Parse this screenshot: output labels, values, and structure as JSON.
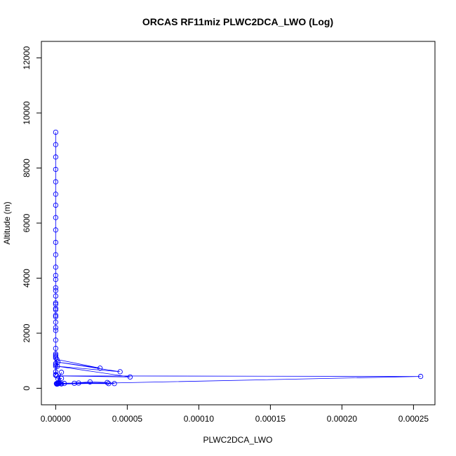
{
  "chart_data": {
    "type": "line",
    "title": "ORCAS RF11miz PLWC2DCA_LWO (Log)",
    "xlabel": "PLWC2DCA_LWO",
    "ylabel": "Altitude (m)",
    "xlim": [
      -1e-05,
      0.000265
    ],
    "ylim": [
      -600,
      12600
    ],
    "x_ticks": [
      0,
      5e-05,
      0.0001,
      0.00015,
      0.0002,
      0.00025
    ],
    "x_tick_labels": [
      "0.00000",
      "0.00005",
      "0.00010",
      "0.00015",
      "0.00020",
      "0.00025"
    ],
    "y_ticks": [
      0,
      2000,
      4000,
      6000,
      8000,
      10000,
      12000
    ],
    "y_tick_labels": [
      "0",
      "2000",
      "4000",
      "6000",
      "8000",
      "10000",
      "12000"
    ],
    "grid": false,
    "color": "#0000ff",
    "series": [
      {
        "x": [
          0,
          0,
          0,
          0,
          0,
          0,
          0,
          0,
          0,
          0,
          0,
          0,
          0,
          0,
          0,
          0,
          0,
          0,
          0,
          0,
          0,
          0,
          0,
          0,
          0,
          0,
          0,
          0,
          0,
          0,
          0,
          0,
          0,
          0,
          0,
          0,
          0,
          0,
          8e-07,
          3.1e-05,
          1.5e-06,
          4.5e-05,
          1.2e-06,
          5.2e-05,
          8e-07,
          0.000255,
          8e-07,
          2.4e-05,
          3.6e-05,
          1.4e-06,
          3.7e-05,
          1.6e-05,
          1.3e-05,
          4.1e-05,
          6e-06,
          4e-06,
          3.5e-06,
          2e-06,
          2.5e-06,
          1.5e-06,
          4e-06,
          1.5e-06,
          2e-06,
          1e-06,
          4e-06,
          5e-07
        ],
        "y": [
          9300,
          8850,
          8400,
          7950,
          7500,
          7050,
          6650,
          6200,
          5750,
          5300,
          4850,
          4400,
          4100,
          3950,
          3650,
          3550,
          3350,
          3100,
          3050,
          2900,
          2850,
          2650,
          2600,
          2400,
          2200,
          2100,
          1750,
          1450,
          1250,
          1200,
          1150,
          1100,
          900,
          850,
          800,
          600,
          500,
          470,
          1050,
          730,
          950,
          600,
          800,
          410,
          450,
          430,
          150,
          230,
          210,
          180,
          170,
          190,
          180,
          170,
          175,
          160,
          170,
          175,
          180,
          160,
          360,
          350,
          200,
          170,
          580,
          170
        ]
      }
    ]
  }
}
